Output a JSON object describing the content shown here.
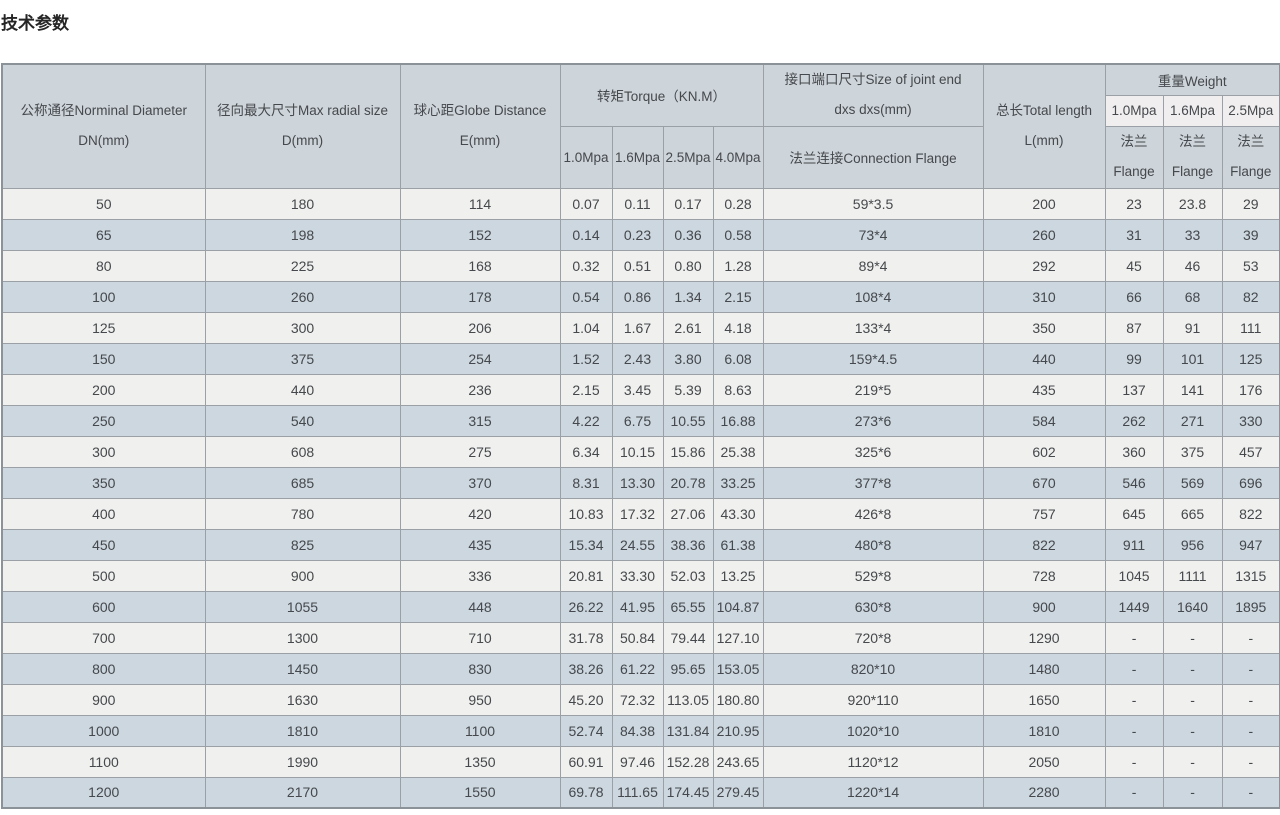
{
  "page": {
    "title": "技术参数"
  },
  "colors": {
    "header_bg": "#cdd4da",
    "subheader_light_bg": "#f0eeef",
    "row_light": "#f0f0ee",
    "row_alt": "#ccd7df",
    "border": "#9aa0a5",
    "text": "#45484c"
  },
  "table": {
    "header": {
      "dn": {
        "line1": "公称通径Norminal Diameter",
        "line2": "DN(mm)"
      },
      "d": {
        "line1": "径向最大尺寸Max radial size",
        "line2": "D(mm)"
      },
      "e": {
        "line1": "球心距Globe Distance",
        "line2": "E(mm)"
      },
      "torque": {
        "title": "转矩Torque（KN.M）",
        "cols": [
          "1.0Mpa",
          "1.6Mpa",
          "2.5Mpa",
          "4.0Mpa"
        ]
      },
      "joint": {
        "line1": "接口端口尺寸Size of joint end",
        "line2": "dxs dxs(mm)",
        "bottom": "法兰连接Connection Flange"
      },
      "length": {
        "line1": "总长Total length",
        "line2": "L(mm)"
      },
      "weight": {
        "title": "重量Weight",
        "cols": [
          "1.0Mpa",
          "1.6Mpa",
          "2.5Mpa"
        ],
        "flange_line1": "法兰",
        "flange_line2": "Flange"
      }
    },
    "rows": [
      [
        "50",
        "180",
        "114",
        "0.07",
        "0.11",
        "0.17",
        "0.28",
        "59*3.5",
        "200",
        "23",
        "23.8",
        "29"
      ],
      [
        "65",
        "198",
        "152",
        "0.14",
        "0.23",
        "0.36",
        "0.58",
        "73*4",
        "260",
        "31",
        "33",
        "39"
      ],
      [
        "80",
        "225",
        "168",
        "0.32",
        "0.51",
        "0.80",
        "1.28",
        "89*4",
        "292",
        "45",
        "46",
        "53"
      ],
      [
        "100",
        "260",
        "178",
        "0.54",
        "0.86",
        "1.34",
        "2.15",
        "108*4",
        "310",
        "66",
        "68",
        "82"
      ],
      [
        "125",
        "300",
        "206",
        "1.04",
        "1.67",
        "2.61",
        "4.18",
        "133*4",
        "350",
        "87",
        "91",
        "111"
      ],
      [
        "150",
        "375",
        "254",
        "1.52",
        "2.43",
        "3.80",
        "6.08",
        "159*4.5",
        "440",
        "99",
        "101",
        "125"
      ],
      [
        "200",
        "440",
        "236",
        "2.15",
        "3.45",
        "5.39",
        "8.63",
        "219*5",
        "435",
        "137",
        "141",
        "176"
      ],
      [
        "250",
        "540",
        "315",
        "4.22",
        "6.75",
        "10.55",
        "16.88",
        "273*6",
        "584",
        "262",
        "271",
        "330"
      ],
      [
        "300",
        "608",
        "275",
        "6.34",
        "10.15",
        "15.86",
        "25.38",
        "325*6",
        "602",
        "360",
        "375",
        "457"
      ],
      [
        "350",
        "685",
        "370",
        "8.31",
        "13.30",
        "20.78",
        "33.25",
        "377*8",
        "670",
        "546",
        "569",
        "696"
      ],
      [
        "400",
        "780",
        "420",
        "10.83",
        "17.32",
        "27.06",
        "43.30",
        "426*8",
        "757",
        "645",
        "665",
        "822"
      ],
      [
        "450",
        "825",
        "435",
        "15.34",
        "24.55",
        "38.36",
        "61.38",
        "480*8",
        "822",
        "911",
        "956",
        "947"
      ],
      [
        "500",
        "900",
        "336",
        "20.81",
        "33.30",
        "52.03",
        "13.25",
        "529*8",
        "728",
        "1045",
        "1111",
        "1315"
      ],
      [
        "600",
        "1055",
        "448",
        "26.22",
        "41.95",
        "65.55",
        "104.87",
        "630*8",
        "900",
        "1449",
        "1640",
        "1895"
      ],
      [
        "700",
        "1300",
        "710",
        "31.78",
        "50.84",
        "79.44",
        "127.10",
        "720*8",
        "1290",
        "-",
        "-",
        "-"
      ],
      [
        "800",
        "1450",
        "830",
        "38.26",
        "61.22",
        "95.65",
        "153.05",
        "820*10",
        "1480",
        "-",
        "-",
        "-"
      ],
      [
        "900",
        "1630",
        "950",
        "45.20",
        "72.32",
        "113.05",
        "180.80",
        "920*110",
        "1650",
        "-",
        "-",
        "-"
      ],
      [
        "1000",
        "1810",
        "1100",
        "52.74",
        "84.38",
        "131.84",
        "210.95",
        "1020*10",
        "1810",
        "-",
        "-",
        "-"
      ],
      [
        "1100",
        "1990",
        "1350",
        "60.91",
        "97.46",
        "152.28",
        "243.65",
        "1120*12",
        "2050",
        "-",
        "-",
        "-"
      ],
      [
        "1200",
        "2170",
        "1550",
        "69.78",
        "111.65",
        "174.45",
        "279.45",
        "1220*14",
        "2280",
        "-",
        "-",
        "-"
      ]
    ]
  }
}
